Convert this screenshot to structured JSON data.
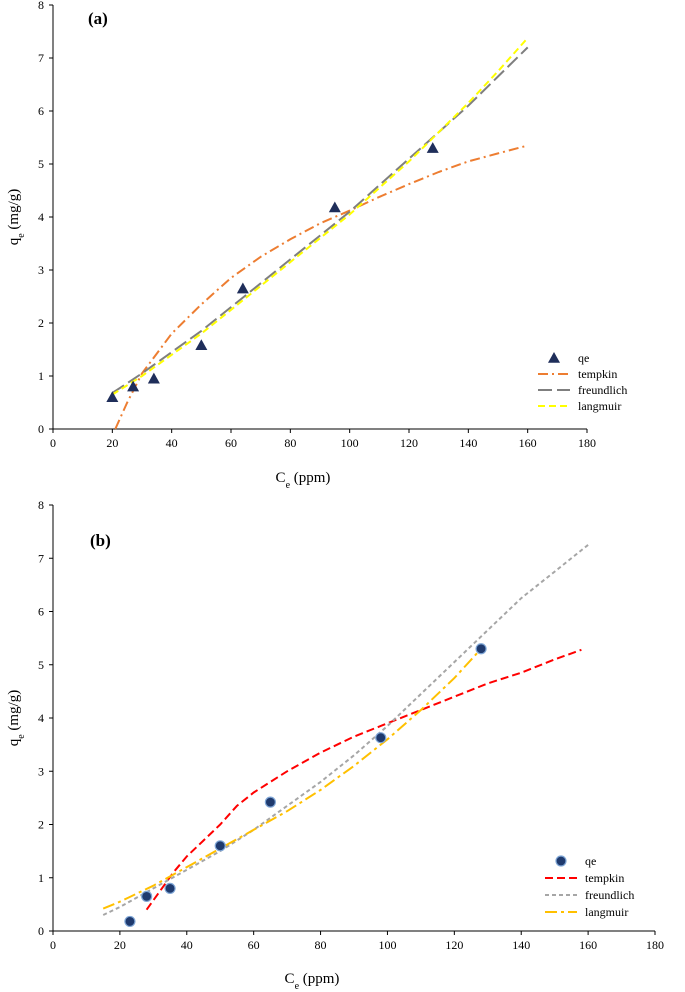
{
  "chart_data": [
    {
      "type": "scatter",
      "panel_label": "(a)",
      "xlabel": {
        "main": "C",
        "sub": "e",
        "rest": " (ppm)"
      },
      "ylabel": {
        "main": "q",
        "sub": "e",
        "rest": " (mg/g)"
      },
      "xlim": [
        0,
        180
      ],
      "ylim": [
        0,
        8
      ],
      "xticks": [
        0,
        20,
        40,
        60,
        80,
        100,
        120,
        140,
        160,
        180
      ],
      "yticks": [
        0,
        1,
        2,
        3,
        4,
        5,
        6,
        7,
        8
      ],
      "legend_position": "bottom-right",
      "series": [
        {
          "name": "qe",
          "kind": "marker",
          "marker": "triangle",
          "color": "#1f2e5a",
          "x": [
            20,
            27,
            34,
            50,
            64,
            95,
            128
          ],
          "y": [
            0.6,
            0.8,
            0.95,
            1.58,
            2.65,
            4.18,
            5.3
          ]
        },
        {
          "name": "tempkin",
          "kind": "line",
          "dash": "10 4 2 4",
          "color": "#ed7d31",
          "x": [
            21,
            25,
            30,
            40,
            50,
            60,
            70,
            80,
            90,
            100,
            110,
            120,
            130,
            140,
            150,
            160
          ],
          "y": [
            0.0,
            0.5,
            1.05,
            1.8,
            2.35,
            2.85,
            3.25,
            3.58,
            3.88,
            4.12,
            4.38,
            4.62,
            4.85,
            5.05,
            5.2,
            5.35
          ]
        },
        {
          "name": "freundlich",
          "kind": "line",
          "dash": "14 5",
          "color": "#7f7f7f",
          "x": [
            20,
            30,
            40,
            50,
            60,
            70,
            80,
            90,
            100,
            110,
            120,
            130,
            140,
            150,
            160
          ],
          "y": [
            0.68,
            1.05,
            1.45,
            1.85,
            2.3,
            2.75,
            3.2,
            3.65,
            4.1,
            4.6,
            5.1,
            5.6,
            6.1,
            6.65,
            7.2
          ]
        },
        {
          "name": "langmuir",
          "kind": "line",
          "dash": "7 4",
          "color": "#ffff00",
          "x": [
            20,
            30,
            40,
            50,
            60,
            70,
            80,
            90,
            100,
            110,
            120,
            130,
            140,
            150,
            160
          ],
          "y": [
            0.65,
            1.0,
            1.4,
            1.8,
            2.25,
            2.7,
            3.15,
            3.6,
            4.05,
            4.55,
            5.05,
            5.6,
            6.15,
            6.75,
            7.38
          ]
        }
      ]
    },
    {
      "type": "scatter",
      "panel_label": "(b)",
      "xlabel": {
        "main": "C",
        "sub": "e",
        "rest": " (ppm)"
      },
      "ylabel": {
        "main": "q",
        "sub": "e",
        "rest": " (mg/g)"
      },
      "xlim": [
        0,
        180
      ],
      "ylim": [
        0,
        8
      ],
      "xticks": [
        0,
        20,
        40,
        60,
        80,
        100,
        120,
        140,
        160,
        180
      ],
      "yticks": [
        0,
        1,
        2,
        3,
        4,
        5,
        6,
        7,
        8
      ],
      "legend_position": "bottom-right",
      "series": [
        {
          "name": "qe",
          "kind": "marker",
          "marker": "circle",
          "color": "#1f3a6e",
          "x": [
            23,
            28,
            35,
            50,
            65,
            98,
            128
          ],
          "y": [
            0.18,
            0.65,
            0.8,
            1.6,
            2.42,
            3.63,
            5.3
          ]
        },
        {
          "name": "tempkin",
          "kind": "line",
          "dash": "8 4",
          "color": "#ff0000",
          "x": [
            28,
            32,
            36,
            40,
            45,
            50,
            55,
            60,
            70,
            80,
            90,
            100,
            110,
            120,
            130,
            140,
            150,
            158
          ],
          "y": [
            0.4,
            0.75,
            1.1,
            1.4,
            1.7,
            2.0,
            2.35,
            2.6,
            3.0,
            3.35,
            3.65,
            3.9,
            4.15,
            4.4,
            4.65,
            4.85,
            5.1,
            5.28
          ]
        },
        {
          "name": "freundlich",
          "kind": "line",
          "dash": "4 3",
          "color": "#a6a6a6",
          "x": [
            15,
            20,
            30,
            40,
            50,
            60,
            70,
            80,
            90,
            100,
            110,
            120,
            130,
            140,
            150,
            160
          ],
          "y": [
            0.3,
            0.45,
            0.8,
            1.15,
            1.5,
            1.9,
            2.35,
            2.8,
            3.3,
            3.85,
            4.45,
            5.05,
            5.65,
            6.25,
            6.75,
            7.25
          ]
        },
        {
          "name": "langmuir",
          "kind": "line",
          "dash": "12 4 3 4",
          "color": "#ffc000",
          "x": [
            15,
            20,
            30,
            40,
            50,
            60,
            70,
            80,
            90,
            100,
            110,
            120,
            128
          ],
          "y": [
            0.42,
            0.55,
            0.85,
            1.2,
            1.55,
            1.9,
            2.25,
            2.65,
            3.1,
            3.6,
            4.15,
            4.75,
            5.3
          ]
        }
      ]
    }
  ]
}
